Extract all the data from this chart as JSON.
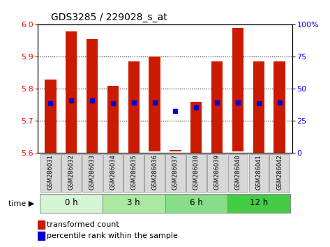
{
  "title": "GDS3285 / 229028_s_at",
  "samples": [
    "GSM286031",
    "GSM286032",
    "GSM286033",
    "GSM286034",
    "GSM286035",
    "GSM286036",
    "GSM286037",
    "GSM286038",
    "GSM286039",
    "GSM286040",
    "GSM286041",
    "GSM286042"
  ],
  "bar_bottoms": [
    5.6,
    5.6,
    5.6,
    5.6,
    5.6,
    5.605,
    5.605,
    5.6,
    5.6,
    5.605,
    5.6,
    5.6
  ],
  "bar_tops": [
    5.83,
    5.98,
    5.955,
    5.81,
    5.885,
    5.9,
    5.61,
    5.76,
    5.885,
    5.99,
    5.885,
    5.885
  ],
  "blue_y": [
    5.755,
    5.765,
    5.765,
    5.755,
    5.758,
    5.758,
    5.732,
    5.742,
    5.758,
    5.758,
    5.755,
    5.758
  ],
  "ylim": [
    5.6,
    6.0
  ],
  "yticks_left": [
    5.6,
    5.7,
    5.8,
    5.9,
    6.0
  ],
  "yticks_right": [
    0,
    25,
    50,
    75,
    100
  ],
  "ytick_right_labels": [
    "0",
    "25",
    "50",
    "75",
    "100%"
  ],
  "grid_yticks": [
    5.7,
    5.8,
    5.9
  ],
  "bar_color": "#cc1a00",
  "blue_color": "#0000cc",
  "bar_width": 0.55,
  "time_groups": [
    {
      "label": "0 h",
      "start": 0,
      "end": 2,
      "color": "#d4f5d4"
    },
    {
      "label": "3 h",
      "start": 3,
      "end": 5,
      "color": "#a8e8a0"
    },
    {
      "label": "6 h",
      "start": 6,
      "end": 8,
      "color": "#88de88"
    },
    {
      "label": "12 h",
      "start": 9,
      "end": 11,
      "color": "#44cc44"
    }
  ],
  "legend_red_label": "transformed count",
  "legend_blue_label": "percentile rank within the sample",
  "background_color": "#ffffff"
}
